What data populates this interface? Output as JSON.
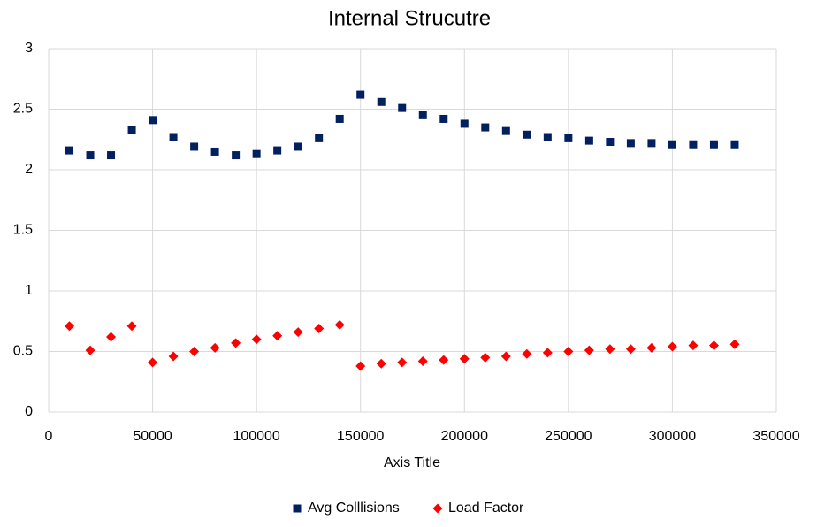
{
  "chart_data": {
    "type": "scatter",
    "title": "Internal Strucutre",
    "xlabel": "Axis Title",
    "ylabel": "",
    "xlim": [
      0,
      350000
    ],
    "ylim": [
      0,
      3
    ],
    "x_ticks": [
      "0",
      "50000",
      "100000",
      "150000",
      "200000",
      "250000",
      "300000",
      "350000"
    ],
    "y_ticks": [
      "0",
      "0.5",
      "1",
      "1.5",
      "2",
      "2.5",
      "3"
    ],
    "grid": true,
    "legend_position": "bottom",
    "x": [
      10000,
      20000,
      30000,
      40000,
      50000,
      60000,
      70000,
      80000,
      90000,
      100000,
      110000,
      120000,
      130000,
      140000,
      150000,
      160000,
      170000,
      180000,
      190000,
      200000,
      210000,
      220000,
      230000,
      240000,
      250000,
      260000,
      270000,
      280000,
      290000,
      300000,
      310000,
      320000,
      330000
    ],
    "series": [
      {
        "name": "Avg Colllisions",
        "color": "#002060",
        "marker": "square",
        "values": [
          2.16,
          2.12,
          2.12,
          2.33,
          2.41,
          2.27,
          2.19,
          2.15,
          2.12,
          2.13,
          2.16,
          2.19,
          2.26,
          2.42,
          2.62,
          2.56,
          2.51,
          2.45,
          2.42,
          2.38,
          2.35,
          2.32,
          2.29,
          2.27,
          2.26,
          2.24,
          2.23,
          2.22,
          2.22,
          2.21,
          2.21,
          2.21,
          2.21
        ]
      },
      {
        "name": "Load Factor",
        "color": "#ff0000",
        "marker": "diamond",
        "values": [
          0.71,
          0.51,
          0.62,
          0.71,
          0.41,
          0.46,
          0.5,
          0.53,
          0.57,
          0.6,
          0.63,
          0.66,
          0.69,
          0.72,
          0.38,
          0.4,
          0.41,
          0.42,
          0.43,
          0.44,
          0.45,
          0.46,
          0.48,
          0.49,
          0.5,
          0.51,
          0.52,
          0.52,
          0.53,
          0.54,
          0.55,
          0.55,
          0.56
        ]
      }
    ]
  }
}
